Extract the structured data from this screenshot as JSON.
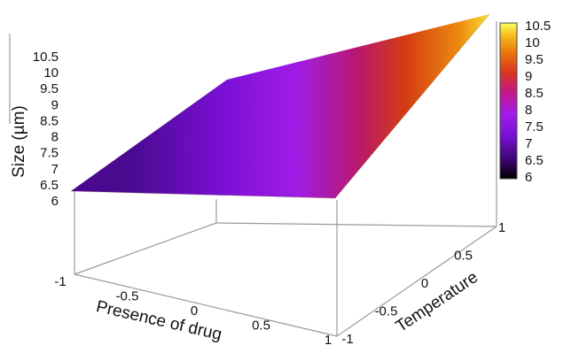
{
  "chart_data": {
    "type": "surface",
    "title": "",
    "xlabel": "Presence of drug",
    "ylabel": "Temperature",
    "zlabel": "Size (µm)",
    "x": [
      -1,
      1
    ],
    "y": [
      -1,
      1
    ],
    "z": [
      [
        6.2,
        6.2
      ],
      [
        10.5,
        10.5
      ]
    ],
    "xlim": [
      -1,
      1
    ],
    "ylim": [
      -1,
      1
    ],
    "zlim": [
      6,
      10.5
    ],
    "x_ticks": [
      "-1",
      "-0.5",
      "0",
      "0.5",
      "1"
    ],
    "y_ticks": [
      "-1",
      "-0.5",
      "0",
      "0.5",
      "1"
    ],
    "z_ticks": [
      "6",
      "6.5",
      "7",
      "7.5",
      "8",
      "8.5",
      "9",
      "9.5",
      "10",
      "10.5"
    ],
    "colorbar": {
      "range": [
        6,
        10.5
      ],
      "ticks": [
        "6",
        "6.5",
        "7",
        "7.5",
        "8",
        "8.5",
        "9",
        "9.5",
        "10",
        "10.5"
      ],
      "colors": [
        "#000000",
        "#4b0a8c",
        "#9a1cf0",
        "#c2178d",
        "#d8351f",
        "#e8780c",
        "#f6c31f",
        "#ffff66"
      ]
    }
  }
}
